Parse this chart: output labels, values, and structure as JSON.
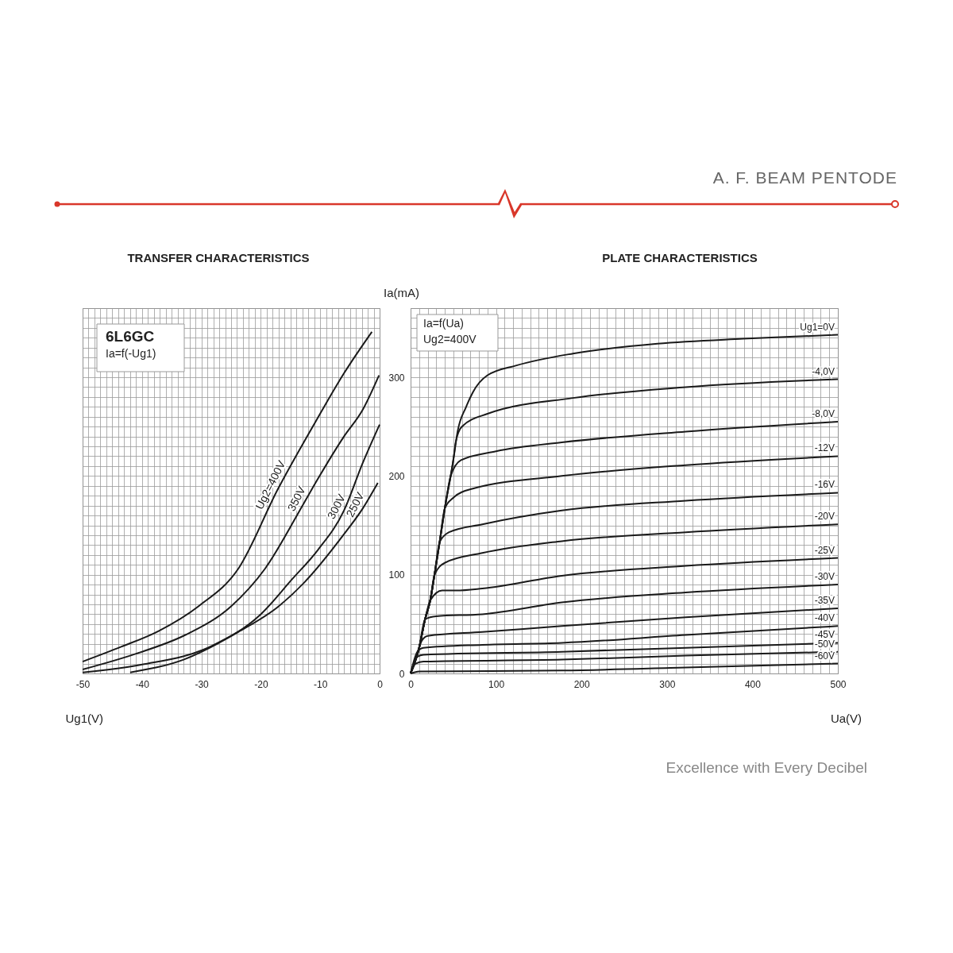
{
  "chart_data": [
    {
      "type": "line",
      "title": "TRANSFER CHARACTERISTICS",
      "xlabel": "Ug1(V)",
      "annotations": [
        "6L6GC",
        "Ia=f(-Ug1)",
        "A. F. BEAM PENTODE"
      ],
      "xlim": [
        -50,
        0
      ],
      "ylim": [
        0,
        370
      ],
      "grid": true,
      "legend": false,
      "tick_labels": "x",
      "xticks": [
        -50,
        {
          "value": -49,
          "label": null
        },
        {
          "value": -48,
          "label": null
        },
        {
          "value": -47,
          "label": null
        },
        {
          "value": -46,
          "label": null
        },
        {
          "value": -45,
          "label": null
        },
        {
          "value": -44,
          "label": null
        },
        {
          "value": -43,
          "label": null
        },
        {
          "value": -42,
          "label": null
        },
        {
          "value": -41,
          "label": null
        },
        -40,
        {
          "value": -39,
          "label": null
        },
        {
          "value": -38,
          "label": null
        },
        {
          "value": -37,
          "label": null
        },
        {
          "value": -36,
          "label": null
        },
        {
          "value": -35,
          "label": null
        },
        {
          "value": -34,
          "label": null
        },
        {
          "value": -33,
          "label": null
        },
        {
          "value": -32,
          "label": null
        },
        {
          "value": -31,
          "label": null
        },
        -30,
        {
          "value": -29,
          "label": null
        },
        {
          "value": -28,
          "label": null
        },
        {
          "value": -27,
          "label": null
        },
        {
          "value": -26,
          "label": null
        },
        {
          "value": -25,
          "label": null
        },
        {
          "value": -24,
          "label": null
        },
        {
          "value": -23,
          "label": null
        },
        {
          "value": -22,
          "label": null
        },
        {
          "value": -21,
          "label": null
        },
        -20,
        {
          "value": -19,
          "label": null
        },
        {
          "value": -18,
          "label": null
        },
        {
          "value": -17,
          "label": null
        },
        {
          "value": -16,
          "label": null
        },
        {
          "value": -15,
          "label": null
        },
        {
          "value": -14,
          "label": null
        },
        {
          "value": -13,
          "label": null
        },
        {
          "value": -12,
          "label": null
        },
        {
          "value": -11,
          "label": null
        },
        -10,
        {
          "value": -9,
          "label": null
        },
        {
          "value": -8,
          "label": null
        },
        {
          "value": -7,
          "label": null
        },
        {
          "value": -6,
          "label": null
        },
        {
          "value": -5,
          "label": null
        },
        {
          "value": -4,
          "label": null
        },
        {
          "value": -3,
          "label": null
        },
        {
          "value": -2,
          "label": null
        },
        {
          "value": -1,
          "label": null
        },
        0
      ],
      "yticks": [
        0,
        {
          "value": 10,
          "label": null
        },
        {
          "value": 20,
          "label": null
        },
        {
          "value": 30,
          "label": null
        },
        {
          "value": 40,
          "label": null
        },
        {
          "value": 50,
          "label": null
        },
        {
          "value": 60,
          "label": null
        },
        {
          "value": 70,
          "label": null
        },
        {
          "value": 80,
          "label": null
        },
        {
          "value": 90,
          "label": null
        },
        100,
        {
          "value": 110,
          "label": null
        },
        {
          "value": 120,
          "label": null
        },
        {
          "value": 130,
          "label": null
        },
        {
          "value": 140,
          "label": null
        },
        {
          "value": 150,
          "label": null
        },
        {
          "value": 160,
          "label": null
        },
        {
          "value": 170,
          "label": null
        },
        {
          "value": 180,
          "label": null
        },
        {
          "value": 190,
          "label": null
        },
        200,
        {
          "value": 210,
          "label": null
        },
        {
          "value": 220,
          "label": null
        },
        {
          "value": 230,
          "label": null
        },
        {
          "value": 240,
          "label": null
        },
        {
          "value": 250,
          "label": null
        },
        {
          "value": 260,
          "label": null
        },
        {
          "value": 270,
          "label": null
        },
        {
          "value": 280,
          "label": null
        },
        {
          "value": 290,
          "label": null
        },
        300,
        {
          "value": 310,
          "label": null
        },
        {
          "value": 320,
          "label": null
        },
        {
          "value": 330,
          "label": null
        },
        {
          "value": 340,
          "label": null
        },
        {
          "value": 350,
          "label": null
        },
        {
          "value": 360,
          "label": null
        },
        {
          "value": 370,
          "label": null
        }
      ],
      "series": [
        {
          "name": "Ug2=400V",
          "color": "#1a1a1a",
          "x": [
            -50,
            -43.5,
            -37.2,
            -30.5,
            -23.8,
            -17.1,
            -10.4,
            -6,
            -1.3
          ],
          "values": [
            12,
            27,
            43,
            68,
            106,
            187,
            259,
            304,
            346
          ]
        },
        {
          "name": "350V",
          "color": "#1a1a1a",
          "x": [
            -50,
            -41,
            -32.7,
            -25,
            -19.3,
            -12.7,
            -10.4,
            -6,
            -2.85,
            -0.1
          ],
          "values": [
            4,
            20,
            39,
            68,
            106,
            173,
            197,
            240,
            267,
            302
          ]
        },
        {
          "name": "300V",
          "color": "#1a1a1a",
          "x": [
            -50,
            -40,
            -28.2,
            -20,
            -14.8,
            -10.4,
            -6,
            -2.85,
            0
          ],
          "values": [
            1,
            9,
            28,
            60,
            95,
            125,
            165,
            213,
            252
          ]
        },
        {
          "name": "250V",
          "color": "#1a1a1a",
          "x": [
            -42,
            -33,
            -23.8,
            -17,
            -12.7,
            -6,
            -2.85,
            -0.3
          ],
          "values": [
            1,
            14,
            42,
            68,
            92,
            141,
            167,
            193
          ]
        }
      ]
    },
    {
      "type": "line",
      "title": "PLATE CHARACTERISTICS",
      "xlabel": "Ua(V)",
      "ylabel": "Ia(mA)",
      "annotations": [
        "Ia=f(Ua)",
        "Ug2=400V",
        "Excellence with Every Decibel"
      ],
      "xlim": [
        0,
        500
      ],
      "ylim": [
        0,
        370
      ],
      "grid": true,
      "legend": false,
      "xticks": [
        0,
        {
          "value": 10,
          "label": null
        },
        {
          "value": 20,
          "label": null
        },
        {
          "value": 30,
          "label": null
        },
        {
          "value": 40,
          "label": null
        },
        {
          "value": 50,
          "label": null
        },
        {
          "value": 60,
          "label": null
        },
        {
          "value": 70,
          "label": null
        },
        {
          "value": 80,
          "label": null
        },
        {
          "value": 90,
          "label": null
        },
        100,
        {
          "value": 110,
          "label": null
        },
        {
          "value": 120,
          "label": null
        },
        {
          "value": 130,
          "label": null
        },
        {
          "value": 140,
          "label": null
        },
        {
          "value": 150,
          "label": null
        },
        {
          "value": 160,
          "label": null
        },
        {
          "value": 170,
          "label": null
        },
        {
          "value": 180,
          "label": null
        },
        {
          "value": 190,
          "label": null
        },
        200,
        {
          "value": 210,
          "label": null
        },
        {
          "value": 220,
          "label": null
        },
        {
          "value": 230,
          "label": null
        },
        {
          "value": 240,
          "label": null
        },
        {
          "value": 250,
          "label": null
        },
        {
          "value": 260,
          "label": null
        },
        {
          "value": 270,
          "label": null
        },
        {
          "value": 280,
          "label": null
        },
        {
          "value": 290,
          "label": null
        },
        300,
        {
          "value": 310,
          "label": null
        },
        {
          "value": 320,
          "label": null
        },
        {
          "value": 330,
          "label": null
        },
        {
          "value": 340,
          "label": null
        },
        {
          "value": 350,
          "label": null
        },
        {
          "value": 360,
          "label": null
        },
        {
          "value": 370,
          "label": null
        },
        {
          "value": 380,
          "label": null
        },
        {
          "value": 390,
          "label": null
        },
        400,
        {
          "value": 410,
          "label": null
        },
        {
          "value": 420,
          "label": null
        },
        {
          "value": 430,
          "label": null
        },
        {
          "value": 440,
          "label": null
        },
        {
          "value": 450,
          "label": null
        },
        {
          "value": 460,
          "label": null
        },
        {
          "value": 470,
          "label": null
        },
        {
          "value": 480,
          "label": null
        },
        {
          "value": 490,
          "label": null
        },
        500
      ],
      "yticks": [
        0,
        {
          "value": 10,
          "label": null
        },
        {
          "value": 20,
          "label": null
        },
        {
          "value": 30,
          "label": null
        },
        {
          "value": 40,
          "label": null
        },
        {
          "value": 50,
          "label": null
        },
        {
          "value": 60,
          "label": null
        },
        {
          "value": 70,
          "label": null
        },
        {
          "value": 80,
          "label": null
        },
        {
          "value": 90,
          "label": null
        },
        100,
        {
          "value": 110,
          "label": null
        },
        {
          "value": 120,
          "label": null
        },
        {
          "value": 130,
          "label": null
        },
        {
          "value": 140,
          "label": null
        },
        {
          "value": 150,
          "label": null
        },
        {
          "value": 160,
          "label": null
        },
        {
          "value": 170,
          "label": null
        },
        {
          "value": 180,
          "label": null
        },
        {
          "value": 190,
          "label": null
        },
        200,
        {
          "value": 210,
          "label": null
        },
        {
          "value": 220,
          "label": null
        },
        {
          "value": 230,
          "label": null
        },
        {
          "value": 240,
          "label": null
        },
        {
          "value": 250,
          "label": null
        },
        {
          "value": 260,
          "label": null
        },
        {
          "value": 270,
          "label": null
        },
        {
          "value": 280,
          "label": null
        },
        {
          "value": 290,
          "label": null
        },
        300,
        {
          "value": 310,
          "label": null
        },
        {
          "value": 320,
          "label": null
        },
        {
          "value": 330,
          "label": null
        },
        {
          "value": 340,
          "label": null
        },
        {
          "value": 350,
          "label": null
        },
        {
          "value": 360,
          "label": null
        },
        {
          "value": 370,
          "label": null
        }
      ],
      "series": [
        {
          "name": "Ug1=0V",
          "color": "#1a1a1a",
          "x": [
            0,
            10,
            17,
            23,
            28,
            34,
            40,
            50,
            55,
            65,
            73,
            90,
            124,
            190,
            289,
            389,
            500
          ],
          "values": [
            0,
            26,
            55,
            74,
            100,
            133,
            167,
            216,
            245,
            270,
            285,
            302,
            312,
            324,
            334,
            339,
            343
          ]
        },
        {
          "name": "-4,0V",
          "color": "#1a1a1a",
          "x": [
            0,
            10,
            17,
            23,
            28,
            34,
            40,
            50,
            53,
            60,
            90,
            190,
            322,
            500
          ],
          "values": [
            0,
            26,
            55,
            74,
            100,
            133,
            167,
            216,
            235,
            250,
            263,
            279,
            290,
            298
          ]
        },
        {
          "name": "-8,0V",
          "color": "#1a1a1a",
          "x": [
            0,
            10,
            17,
            23,
            28,
            34,
            40,
            47,
            59,
            100,
            177,
            322,
            500
          ],
          "values": [
            0,
            26,
            55,
            74,
            100,
            133,
            167,
            200,
            216,
            225,
            234,
            245,
            255
          ]
        },
        {
          "name": "-12V",
          "color": "#1a1a1a",
          "x": [
            0,
            10,
            17,
            23,
            28,
            34,
            40,
            50,
            72,
            177,
            322,
            500
          ],
          "values": [
            0,
            26,
            55,
            74,
            100,
            133,
            167,
            178,
            187,
            200,
            211,
            220
          ]
        },
        {
          "name": "-16V",
          "color": "#1a1a1a",
          "x": [
            0,
            10,
            17,
            23,
            28,
            34,
            45,
            84,
            177,
            322,
            500
          ],
          "values": [
            0,
            26,
            55,
            74,
            100,
            133,
            143,
            151,
            165,
            175,
            183
          ]
        },
        {
          "name": "-20V",
          "color": "#1a1a1a",
          "x": [
            0,
            10,
            17,
            23,
            28,
            40,
            84,
            177,
            322,
            500
          ],
          "values": [
            0,
            26,
            55,
            74,
            100,
            112,
            122,
            134,
            143,
            151
          ]
        },
        {
          "name": "-25V",
          "color": "#1a1a1a",
          "x": [
            0,
            10,
            17,
            23,
            37,
            53,
            84,
            177,
            322,
            500
          ],
          "values": [
            0,
            26,
            55,
            74,
            84,
            84,
            86,
            99,
            109,
            117
          ]
        },
        {
          "name": "-30V",
          "color": "#1a1a1a",
          "x": [
            0,
            10,
            17,
            30,
            84,
            177,
            322,
            500
          ],
          "values": [
            0,
            26,
            55,
            58,
            60,
            72,
            82,
            90
          ]
        },
        {
          "name": "-35V",
          "color": "#1a1a1a",
          "x": [
            0,
            10,
            13,
            20,
            84,
            177,
            322,
            500
          ],
          "values": [
            0,
            26,
            33,
            38,
            42,
            48,
            57,
            66
          ]
        },
        {
          "name": "-40V",
          "color": "#1a1a1a",
          "x": [
            0,
            8,
            15,
            84,
            177,
            322,
            500
          ],
          "values": [
            0,
            22,
            26,
            29,
            31,
            39,
            48
          ]
        },
        {
          "name": "-45V",
          "color": "#1a1a1a",
          "x": [
            0,
            8,
            15,
            177,
            322,
            500
          ],
          "values": [
            0,
            17,
            19,
            22,
            26,
            31
          ]
        },
        {
          "name": "-50V",
          "color": "#1a1a1a",
          "x": [
            0,
            6,
            15,
            177,
            322,
            500
          ],
          "values": [
            0,
            10,
            12,
            14,
            18,
            22
          ]
        },
        {
          "name": "-60V",
          "color": "#1a1a1a",
          "x": [
            0,
            10,
            177,
            322,
            500
          ],
          "values": [
            0,
            2,
            3,
            6,
            10
          ]
        }
      ]
    }
  ]
}
